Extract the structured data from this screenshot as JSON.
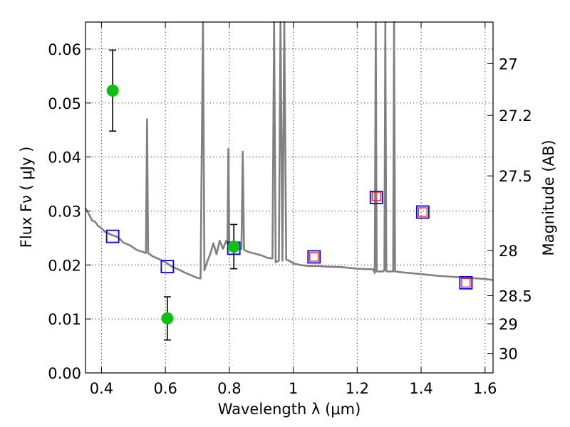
{
  "chart_data": {
    "type": "scatter",
    "title": "",
    "xlabel": "Wavelength  λ (μm)",
    "ylabel": "Flux  Fν  ( μJy )",
    "y2label": "Magnitude (AB)",
    "xlim": [
      0.35,
      1.625
    ],
    "ylim": [
      0.0,
      0.065
    ],
    "xticks": [
      0.4,
      0.6,
      0.8,
      1.0,
      1.2,
      1.4,
      1.6
    ],
    "xtick_labels": [
      "0.4",
      "0.6",
      "0.8",
      "1",
      "1.2",
      "1.4",
      "1.6"
    ],
    "yticks": [
      0.0,
      0.01,
      0.02,
      0.03,
      0.04,
      0.05,
      0.06
    ],
    "ytick_labels": [
      "0.00",
      "0.01",
      "0.02",
      "0.03",
      "0.04",
      "0.05",
      "0.06"
    ],
    "y2ticks": [
      {
        "flux": 0.0573,
        "label": "27"
      },
      {
        "flux": 0.0477,
        "label": "27.2"
      },
      {
        "flux": 0.0365,
        "label": "27.5"
      },
      {
        "flux": 0.0227,
        "label": "28"
      },
      {
        "flux": 0.0143,
        "label": "28.5"
      },
      {
        "flux": 0.0091,
        "label": "29"
      },
      {
        "flux": 0.0036,
        "label": "30"
      }
    ],
    "grid": true,
    "series": [
      {
        "kind": "sed_model",
        "color": "#808080",
        "points": [
          [
            0.35,
            0.0305
          ],
          [
            0.36,
            0.0295
          ],
          [
            0.37,
            0.0283
          ],
          [
            0.38,
            0.028
          ],
          [
            0.39,
            0.0272
          ],
          [
            0.4,
            0.0268
          ],
          [
            0.41,
            0.0262
          ],
          [
            0.43,
            0.0256
          ],
          [
            0.45,
            0.0252
          ],
          [
            0.47,
            0.0241
          ],
          [
            0.49,
            0.0236
          ],
          [
            0.51,
            0.0228
          ],
          [
            0.53,
            0.0224
          ],
          [
            0.539,
            0.0222
          ],
          [
            0.5425,
            0.047
          ],
          [
            0.546,
            0.0222
          ],
          [
            0.56,
            0.0216
          ],
          [
            0.58,
            0.0211
          ],
          [
            0.6,
            0.0205
          ],
          [
            0.62,
            0.0197
          ],
          [
            0.64,
            0.0192
          ],
          [
            0.66,
            0.0186
          ],
          [
            0.68,
            0.0181
          ],
          [
            0.7,
            0.0176
          ],
          [
            0.71,
            0.0175
          ],
          [
            0.7175,
            0.065
          ],
          [
            0.722,
            0.019
          ],
          [
            0.73,
            0.0205
          ],
          [
            0.74,
            0.022
          ],
          [
            0.75,
            0.024
          ],
          [
            0.76,
            0.022
          ],
          [
            0.77,
            0.0245
          ],
          [
            0.78,
            0.023
          ],
          [
            0.79,
            0.0245
          ],
          [
            0.794,
            0.024
          ],
          [
            0.797,
            0.0415
          ],
          [
            0.8,
            0.024
          ],
          [
            0.81,
            0.0236
          ],
          [
            0.82,
            0.0235
          ],
          [
            0.83,
            0.023
          ],
          [
            0.838,
            0.023
          ],
          [
            0.842,
            0.041
          ],
          [
            0.846,
            0.0228
          ],
          [
            0.86,
            0.0224
          ],
          [
            0.88,
            0.0221
          ],
          [
            0.9,
            0.0218
          ],
          [
            0.92,
            0.0213
          ],
          [
            0.935,
            0.0212
          ],
          [
            0.94,
            0.065
          ],
          [
            0.945,
            0.0205
          ],
          [
            0.955,
            0.0208
          ],
          [
            0.96,
            0.065
          ],
          [
            0.966,
            0.0208
          ],
          [
            0.972,
            0.065
          ],
          [
            0.978,
            0.021
          ],
          [
            0.99,
            0.0207
          ],
          [
            1.0,
            0.0203
          ],
          [
            1.02,
            0.02
          ],
          [
            1.05,
            0.0198
          ],
          [
            1.08,
            0.0198
          ],
          [
            1.1,
            0.0197
          ],
          [
            1.15,
            0.0196
          ],
          [
            1.2,
            0.0193
          ],
          [
            1.25,
            0.0192
          ],
          [
            1.255,
            0.0185
          ],
          [
            1.258,
            0.065
          ],
          [
            1.261,
            0.0188
          ],
          [
            1.27,
            0.0188
          ],
          [
            1.28,
            0.0188
          ],
          [
            1.285,
            0.019
          ],
          [
            1.288,
            0.065
          ],
          [
            1.291,
            0.0188
          ],
          [
            1.3,
            0.0188
          ],
          [
            1.31,
            0.0188
          ],
          [
            1.3125,
            0.0188
          ],
          [
            1.3155,
            0.065
          ],
          [
            1.3185,
            0.0188
          ],
          [
            1.33,
            0.0187
          ],
          [
            1.4,
            0.0183
          ],
          [
            1.45,
            0.018
          ],
          [
            1.5,
            0.0178
          ],
          [
            1.55,
            0.0176
          ],
          [
            1.6,
            0.0174
          ],
          [
            1.625,
            0.0172
          ]
        ]
      },
      {
        "kind": "observed",
        "marker": "circle",
        "color": "#10c010",
        "points": [
          {
            "x": 0.435,
            "y": 0.0523,
            "yerr": 0.0075
          },
          {
            "x": 0.606,
            "y": 0.0101,
            "yerr": 0.004
          },
          {
            "x": 0.814,
            "y": 0.0234,
            "yerr": 0.0041
          }
        ]
      },
      {
        "kind": "model_photometry",
        "marker": "square",
        "color": "#0000ff",
        "points": [
          {
            "x": 0.435,
            "y": 0.0253
          },
          {
            "x": 0.606,
            "y": 0.0197
          },
          {
            "x": 0.814,
            "y": 0.0231
          },
          {
            "x": 1.065,
            "y": 0.0215
          },
          {
            "x": 1.26,
            "y": 0.0325
          },
          {
            "x": 1.405,
            "y": 0.0298
          },
          {
            "x": 1.54,
            "y": 0.0167
          }
        ]
      },
      {
        "kind": "nir_marker",
        "marker": "square",
        "color": "#ff0000",
        "points": [
          {
            "x": 1.065,
            "y": 0.0215
          },
          {
            "x": 1.26,
            "y": 0.0327
          },
          {
            "x": 1.405,
            "y": 0.0298
          },
          {
            "x": 1.54,
            "y": 0.0167
          }
        ]
      }
    ]
  }
}
